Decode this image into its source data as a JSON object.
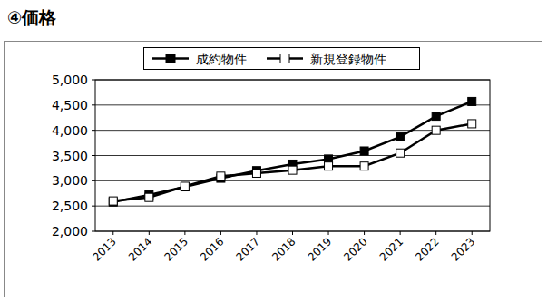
{
  "chart_data": {
    "type": "line",
    "title": "④価格",
    "categories": [
      "2013",
      "2014",
      "2015",
      "2016",
      "2017",
      "2018",
      "2019",
      "2020",
      "2021",
      "2022",
      "2023"
    ],
    "series": [
      {
        "name": "成約物件",
        "color": "#000000",
        "marker": "filled-square",
        "line_style": "solid",
        "values": [
          2580,
          2720,
          2880,
          3050,
          3200,
          3330,
          3430,
          3590,
          3870,
          4280,
          4570
        ]
      },
      {
        "name": "新規登録物件",
        "color": "#000000",
        "marker": "open-square",
        "line_style": "solid",
        "values": [
          2600,
          2670,
          2890,
          3090,
          3150,
          3210,
          3290,
          3290,
          3550,
          4000,
          4130
        ]
      }
    ],
    "ylim": [
      2000,
      5000
    ],
    "yticks": [
      {
        "value": 2000,
        "label": "2,000"
      },
      {
        "value": 2500,
        "label": "2,500"
      },
      {
        "value": 3000,
        "label": "3,000"
      },
      {
        "value": 3500,
        "label": "3,500"
      },
      {
        "value": 4000,
        "label": "4,000"
      },
      {
        "value": 4500,
        "label": "4,500"
      },
      {
        "value": 5000,
        "label": "5,000"
      }
    ],
    "grid": true,
    "legend": "top"
  }
}
